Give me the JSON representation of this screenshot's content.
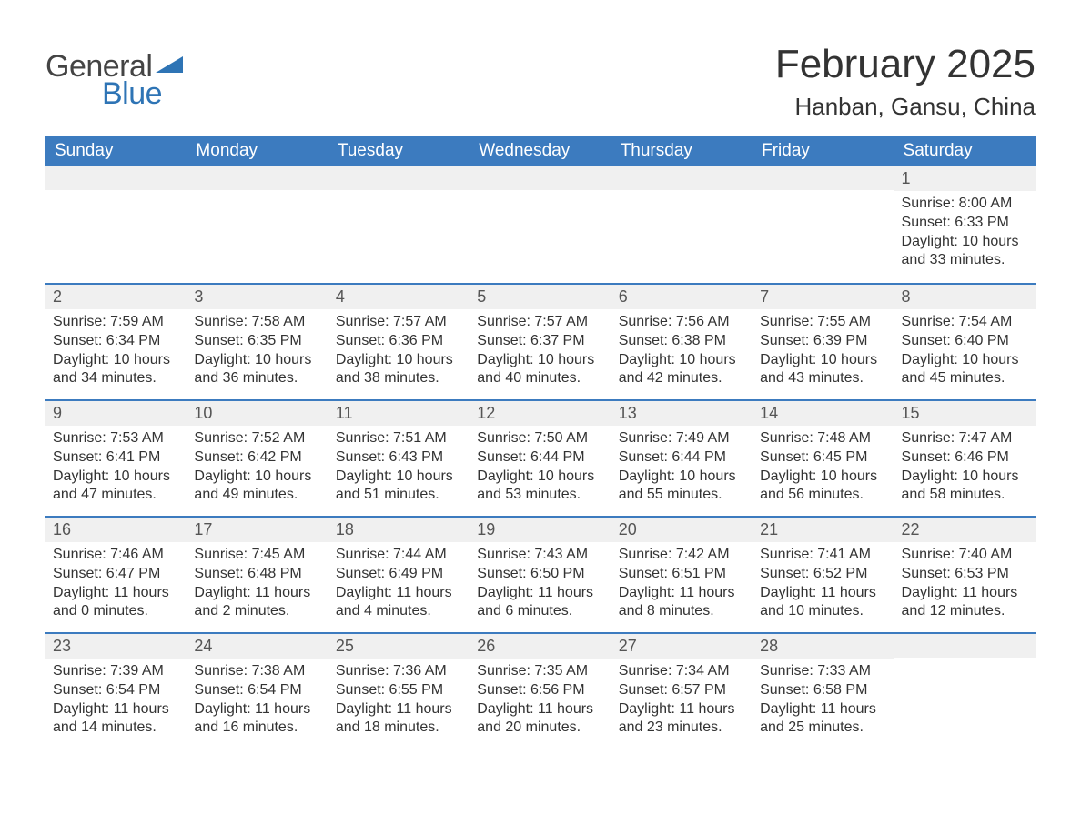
{
  "logo": {
    "textA": "General",
    "textB": "Blue",
    "accent": "#2e74b5"
  },
  "title": "February 2025",
  "location": "Hanban, Gansu, China",
  "colors": {
    "header_bg": "#3c7bbf",
    "header_text": "#ffffff",
    "row_divider": "#3c7bbf",
    "daynum_bg": "#f0f0f0",
    "body_text": "#333333",
    "page_bg": "#ffffff"
  },
  "typography": {
    "title_fontsize": 44,
    "location_fontsize": 26,
    "dow_fontsize": 19,
    "daynum_fontsize": 18,
    "body_fontsize": 16
  },
  "dow": [
    "Sunday",
    "Monday",
    "Tuesday",
    "Wednesday",
    "Thursday",
    "Friday",
    "Saturday"
  ],
  "labels": {
    "sunrise": "Sunrise:",
    "sunset": "Sunset:",
    "daylight": "Daylight:"
  },
  "weeks": [
    [
      null,
      null,
      null,
      null,
      null,
      null,
      {
        "n": "1",
        "sunrise": "8:00 AM",
        "sunset": "6:33 PM",
        "dl1": "10 hours",
        "dl2": "and 33 minutes."
      }
    ],
    [
      {
        "n": "2",
        "sunrise": "7:59 AM",
        "sunset": "6:34 PM",
        "dl1": "10 hours",
        "dl2": "and 34 minutes."
      },
      {
        "n": "3",
        "sunrise": "7:58 AM",
        "sunset": "6:35 PM",
        "dl1": "10 hours",
        "dl2": "and 36 minutes."
      },
      {
        "n": "4",
        "sunrise": "7:57 AM",
        "sunset": "6:36 PM",
        "dl1": "10 hours",
        "dl2": "and 38 minutes."
      },
      {
        "n": "5",
        "sunrise": "7:57 AM",
        "sunset": "6:37 PM",
        "dl1": "10 hours",
        "dl2": "and 40 minutes."
      },
      {
        "n": "6",
        "sunrise": "7:56 AM",
        "sunset": "6:38 PM",
        "dl1": "10 hours",
        "dl2": "and 42 minutes."
      },
      {
        "n": "7",
        "sunrise": "7:55 AM",
        "sunset": "6:39 PM",
        "dl1": "10 hours",
        "dl2": "and 43 minutes."
      },
      {
        "n": "8",
        "sunrise": "7:54 AM",
        "sunset": "6:40 PM",
        "dl1": "10 hours",
        "dl2": "and 45 minutes."
      }
    ],
    [
      {
        "n": "9",
        "sunrise": "7:53 AM",
        "sunset": "6:41 PM",
        "dl1": "10 hours",
        "dl2": "and 47 minutes."
      },
      {
        "n": "10",
        "sunrise": "7:52 AM",
        "sunset": "6:42 PM",
        "dl1": "10 hours",
        "dl2": "and 49 minutes."
      },
      {
        "n": "11",
        "sunrise": "7:51 AM",
        "sunset": "6:43 PM",
        "dl1": "10 hours",
        "dl2": "and 51 minutes."
      },
      {
        "n": "12",
        "sunrise": "7:50 AM",
        "sunset": "6:44 PM",
        "dl1": "10 hours",
        "dl2": "and 53 minutes."
      },
      {
        "n": "13",
        "sunrise": "7:49 AM",
        "sunset": "6:44 PM",
        "dl1": "10 hours",
        "dl2": "and 55 minutes."
      },
      {
        "n": "14",
        "sunrise": "7:48 AM",
        "sunset": "6:45 PM",
        "dl1": "10 hours",
        "dl2": "and 56 minutes."
      },
      {
        "n": "15",
        "sunrise": "7:47 AM",
        "sunset": "6:46 PM",
        "dl1": "10 hours",
        "dl2": "and 58 minutes."
      }
    ],
    [
      {
        "n": "16",
        "sunrise": "7:46 AM",
        "sunset": "6:47 PM",
        "dl1": "11 hours",
        "dl2": "and 0 minutes."
      },
      {
        "n": "17",
        "sunrise": "7:45 AM",
        "sunset": "6:48 PM",
        "dl1": "11 hours",
        "dl2": "and 2 minutes."
      },
      {
        "n": "18",
        "sunrise": "7:44 AM",
        "sunset": "6:49 PM",
        "dl1": "11 hours",
        "dl2": "and 4 minutes."
      },
      {
        "n": "19",
        "sunrise": "7:43 AM",
        "sunset": "6:50 PM",
        "dl1": "11 hours",
        "dl2": "and 6 minutes."
      },
      {
        "n": "20",
        "sunrise": "7:42 AM",
        "sunset": "6:51 PM",
        "dl1": "11 hours",
        "dl2": "and 8 minutes."
      },
      {
        "n": "21",
        "sunrise": "7:41 AM",
        "sunset": "6:52 PM",
        "dl1": "11 hours",
        "dl2": "and 10 minutes."
      },
      {
        "n": "22",
        "sunrise": "7:40 AM",
        "sunset": "6:53 PM",
        "dl1": "11 hours",
        "dl2": "and 12 minutes."
      }
    ],
    [
      {
        "n": "23",
        "sunrise": "7:39 AM",
        "sunset": "6:54 PM",
        "dl1": "11 hours",
        "dl2": "and 14 minutes."
      },
      {
        "n": "24",
        "sunrise": "7:38 AM",
        "sunset": "6:54 PM",
        "dl1": "11 hours",
        "dl2": "and 16 minutes."
      },
      {
        "n": "25",
        "sunrise": "7:36 AM",
        "sunset": "6:55 PM",
        "dl1": "11 hours",
        "dl2": "and 18 minutes."
      },
      {
        "n": "26",
        "sunrise": "7:35 AM",
        "sunset": "6:56 PM",
        "dl1": "11 hours",
        "dl2": "and 20 minutes."
      },
      {
        "n": "27",
        "sunrise": "7:34 AM",
        "sunset": "6:57 PM",
        "dl1": "11 hours",
        "dl2": "and 23 minutes."
      },
      {
        "n": "28",
        "sunrise": "7:33 AM",
        "sunset": "6:58 PM",
        "dl1": "11 hours",
        "dl2": "and 25 minutes."
      },
      null
    ]
  ]
}
